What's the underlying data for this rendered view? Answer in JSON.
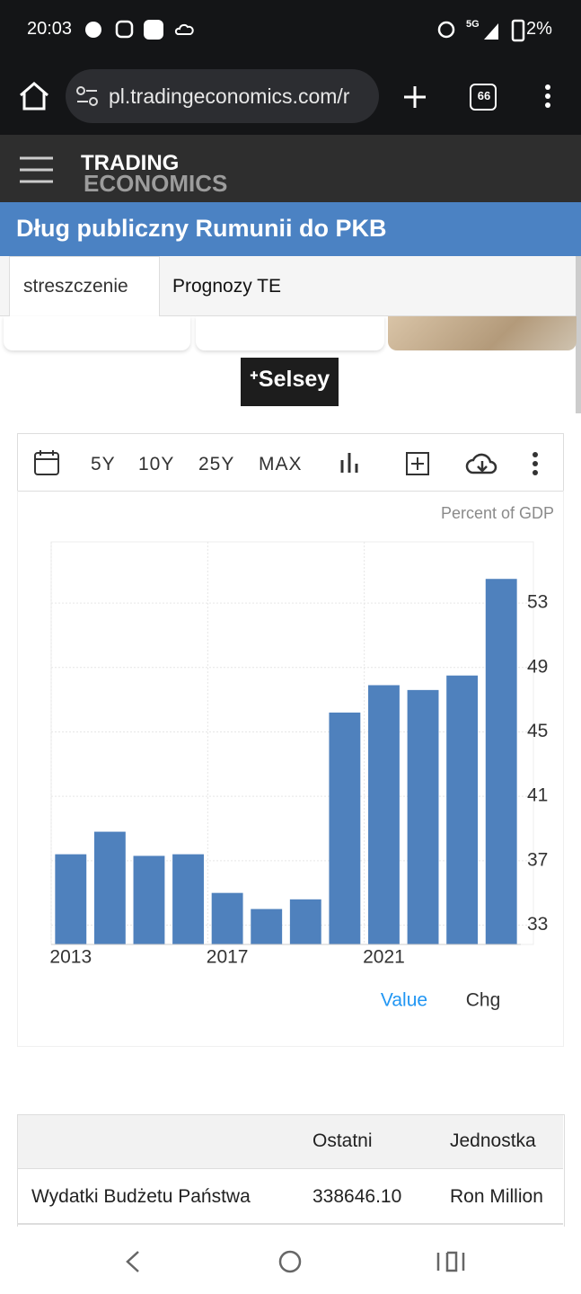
{
  "status_bar": {
    "time": "20:03",
    "network": "5G",
    "battery": "2%"
  },
  "browser": {
    "url": "pl.tradingeconomics.com/r",
    "tab_count": "66"
  },
  "site": {
    "logo_top": "TRADING",
    "logo_bottom": "ECONOMICS"
  },
  "page_title": "Dług publiczny Rumunii do PKB",
  "tabs": [
    "streszczenie",
    "Prognozy TE"
  ],
  "ad": "⁺Selsey",
  "toolbar": [
    "5Y",
    "10Y",
    "25Y",
    "MAX"
  ],
  "chart_data": {
    "type": "bar",
    "unit": "Percent of GDP",
    "categories": [
      "2013",
      null,
      null,
      null,
      "2017",
      null,
      null,
      null,
      "2021",
      null,
      null,
      null
    ],
    "values": [
      37.4,
      38.8,
      37.3,
      37.4,
      35.0,
      34.0,
      34.6,
      46.2,
      47.9,
      47.6,
      48.5,
      54.5
    ],
    "color": "#4f81bd",
    "ylim": [
      31.8,
      56.8
    ],
    "yticks": [
      33,
      37,
      41,
      45,
      49,
      53
    ],
    "grid": true,
    "legend": [
      "Value",
      "Chg"
    ]
  },
  "table": {
    "header": [
      "Ostatni",
      "Jednostka"
    ],
    "rows": [
      [
        "Wydatki Budżetu Państwa",
        "338646.10",
        "Ron Million"
      ]
    ]
  }
}
